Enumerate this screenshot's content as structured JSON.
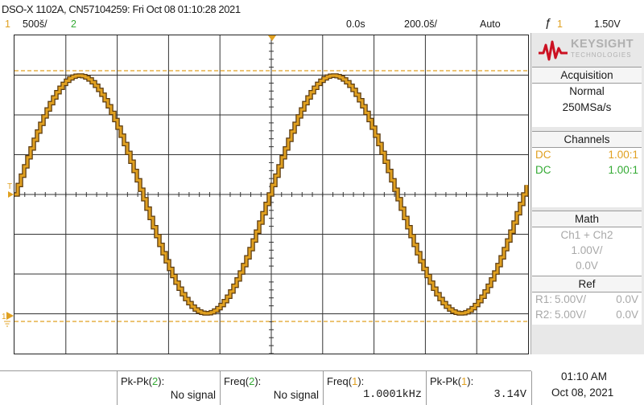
{
  "header": {
    "title": "DSO-X 1102A, CN57104259: Fri Oct 08 01:10:28 2021",
    "ch1_num": "1",
    "ch1_scale": "500š/",
    "ch2_num": "2",
    "time_offset": "0.0s",
    "time_scale": "200.0š/",
    "trigger_mode": "Auto",
    "trigger_icon": "ƒ",
    "trigger_source": "1",
    "trigger_level": "1.50V"
  },
  "brand": {
    "name": "KEYSIGHT",
    "sub": "TECHNOLOGIES",
    "accent": "#cc1122"
  },
  "acquisition": {
    "heading": "Acquisition",
    "mode": "Normal",
    "rate": "250MSa/s"
  },
  "channels": {
    "heading": "Channels",
    "ch1": {
      "coupling": "DC",
      "probe": "1.00:1",
      "color": "#e0a020"
    },
    "ch2": {
      "coupling": "DC",
      "probe": "1.00:1",
      "color": "#33aa33"
    }
  },
  "math": {
    "heading": "Math",
    "expr": "Ch1 + Ch2",
    "scale": "1.00V/",
    "offset": "0.0V"
  },
  "ref": {
    "heading": "Ref",
    "r1_label": "R1:",
    "r1_scale": "5.00V/",
    "r1_offset": "0.0V",
    "r2_label": "R2:",
    "r2_scale": "5.00V/",
    "r2_offset": "0.0V"
  },
  "markers": {
    "trigger_marker": "T",
    "ch1_ground_marker": "1"
  },
  "measurements": [
    {
      "label": "Pk-Pk",
      "src": "2",
      "value": "No signal"
    },
    {
      "label": "Freq",
      "src": "2",
      "value": "No signal"
    },
    {
      "label": "Freq",
      "src": "1",
      "value": "1.0001kHz"
    },
    {
      "label": "Pk-Pk",
      "src": "1",
      "value": "3.14V"
    }
  ],
  "clock": {
    "time": "01:10 AM",
    "date": "Oct 08, 2021"
  },
  "colors": {
    "ch1": "#e0a020",
    "ch2": "#33aa33",
    "trace_edge": "#5a3a10"
  }
}
